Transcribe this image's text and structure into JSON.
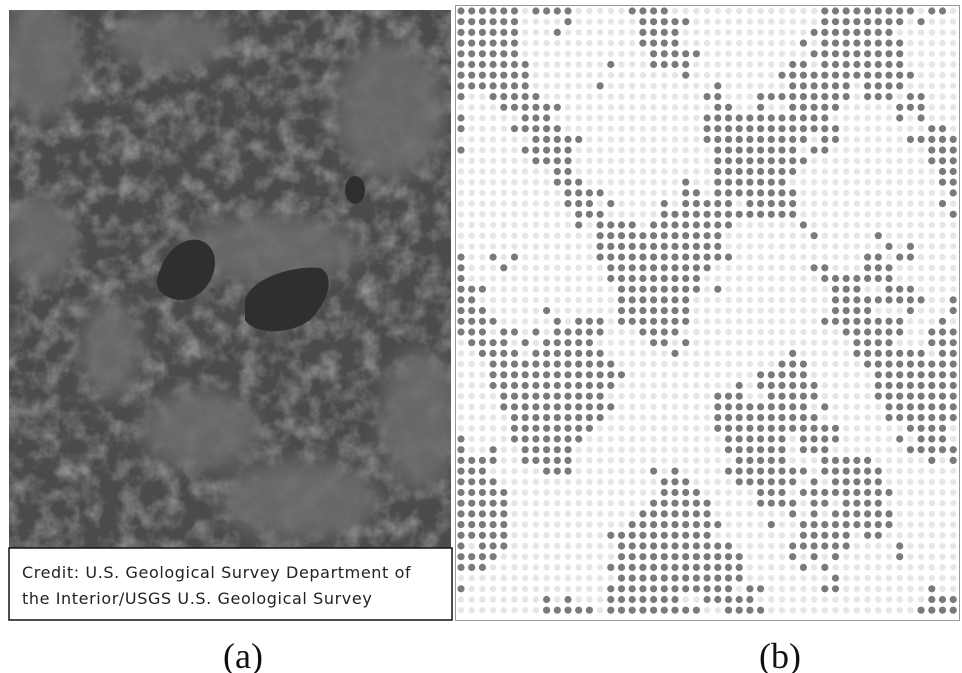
{
  "panel_a": {
    "credit_lines": [
      "Credit: U.S. Geological Survey Department of",
      "the Interior/USGS U.S. Geological Survey"
    ],
    "caption": "(a)"
  },
  "panel_b": {
    "caption": "(b)"
  }
}
